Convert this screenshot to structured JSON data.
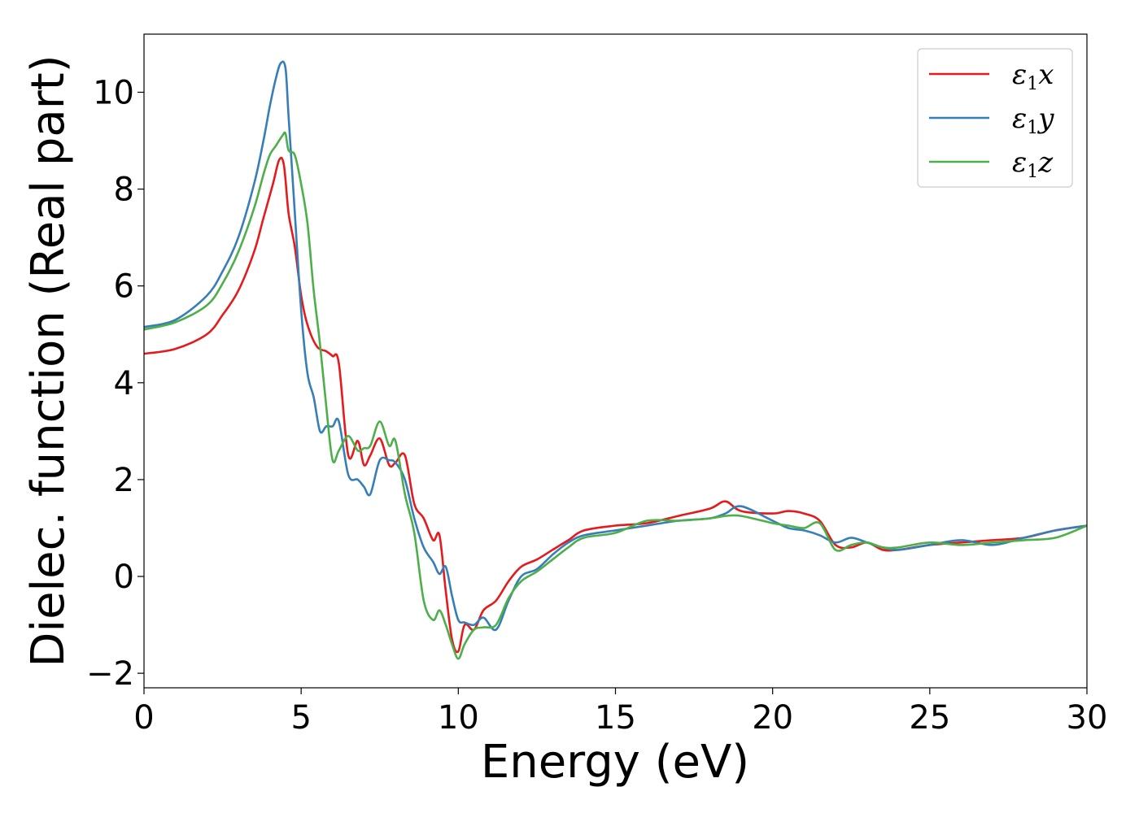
{
  "chart_data": {
    "type": "line",
    "title": "",
    "xlabel": "Energy (eV)",
    "ylabel": "Dielec. function (Real part)",
    "xlim": [
      0,
      30
    ],
    "ylim": [
      -2.3,
      11.2
    ],
    "xticks": [
      0,
      5,
      10,
      15,
      20,
      25,
      30
    ],
    "xtick_labels": [
      "0",
      "5",
      "10",
      "15",
      "20",
      "25",
      "30"
    ],
    "yticks": [
      -2,
      0,
      2,
      4,
      6,
      8,
      10
    ],
    "ytick_labels": [
      "−2",
      "0",
      "2",
      "4",
      "6",
      "8",
      "10"
    ],
    "grid": false,
    "legend_position": "top-right",
    "series": [
      {
        "name": "ε1x",
        "legend_base": "ε",
        "legend_sub": "1",
        "legend_suffix": "x",
        "color": "#e41a1c",
        "x": [
          0,
          1,
          2,
          2.5,
          3,
          3.5,
          3.8,
          4.1,
          4.3,
          4.45,
          4.6,
          4.8,
          5.0,
          5.2,
          5.5,
          5.8,
          6.0,
          6.2,
          6.5,
          6.8,
          7.0,
          7.2,
          7.5,
          7.8,
          8.0,
          8.3,
          8.6,
          8.9,
          9.2,
          9.4,
          9.6,
          9.8,
          10.0,
          10.2,
          10.5,
          10.8,
          11.2,
          11.6,
          12.0,
          12.5,
          13.0,
          13.5,
          14.0,
          15.0,
          16.0,
          17.0,
          18.0,
          18.5,
          19.0,
          20.0,
          20.5,
          21.0,
          21.5,
          22.0,
          22.5,
          23.0,
          23.5,
          24.0,
          25.0,
          26.0,
          27.0,
          28.0,
          29.0,
          30.0
        ],
        "values": [
          4.6,
          4.7,
          5.0,
          5.4,
          5.9,
          6.7,
          7.4,
          8.1,
          8.6,
          8.5,
          7.5,
          6.8,
          5.8,
          5.2,
          4.75,
          4.65,
          4.55,
          4.4,
          2.5,
          2.8,
          2.3,
          2.5,
          2.85,
          2.3,
          2.35,
          2.5,
          1.5,
          1.2,
          0.75,
          0.85,
          -0.3,
          -1.3,
          -1.55,
          -1.0,
          -1.1,
          -0.7,
          -0.5,
          -0.1,
          0.2,
          0.35,
          0.55,
          0.75,
          0.95,
          1.05,
          1.1,
          1.25,
          1.4,
          1.55,
          1.35,
          1.3,
          1.35,
          1.3,
          1.15,
          0.65,
          0.6,
          0.7,
          0.55,
          0.55,
          0.65,
          0.7,
          0.75,
          0.8,
          0.95,
          1.05
        ]
      },
      {
        "name": "ε1y",
        "legend_base": "ε",
        "legend_sub": "1",
        "legend_suffix": "y",
        "color": "#377eb8",
        "x": [
          0,
          1,
          2,
          2.5,
          3,
          3.5,
          3.8,
          4.0,
          4.2,
          4.35,
          4.5,
          4.6,
          4.8,
          5.0,
          5.2,
          5.4,
          5.6,
          5.8,
          6.0,
          6.2,
          6.5,
          6.8,
          7.0,
          7.2,
          7.5,
          7.8,
          8.0,
          8.3,
          8.6,
          8.9,
          9.2,
          9.4,
          9.6,
          9.8,
          10.0,
          10.2,
          10.5,
          10.8,
          11.2,
          11.6,
          12.0,
          12.5,
          13.0,
          13.5,
          14.0,
          15.0,
          16.0,
          17.0,
          18.0,
          18.5,
          19.0,
          20.0,
          20.5,
          21.0,
          21.5,
          22.0,
          22.5,
          23.0,
          23.5,
          24.0,
          25.0,
          26.0,
          27.0,
          28.0,
          29.0,
          30.0
        ],
        "values": [
          5.15,
          5.3,
          5.8,
          6.3,
          7.0,
          8.1,
          9.0,
          9.7,
          10.3,
          10.6,
          10.5,
          9.5,
          7.5,
          5.5,
          4.2,
          3.7,
          3.0,
          3.1,
          3.1,
          3.2,
          2.1,
          2.0,
          1.85,
          1.7,
          2.4,
          2.4,
          2.35,
          2.0,
          1.2,
          0.6,
          0.3,
          0.05,
          0.2,
          -0.4,
          -0.9,
          -0.95,
          -1.0,
          -0.85,
          -1.1,
          -0.5,
          0.0,
          0.15,
          0.45,
          0.7,
          0.85,
          0.95,
          1.05,
          1.15,
          1.2,
          1.3,
          1.45,
          1.15,
          1.0,
          0.95,
          0.85,
          0.7,
          0.8,
          0.7,
          0.6,
          0.55,
          0.65,
          0.75,
          0.65,
          0.8,
          0.95,
          1.05
        ]
      },
      {
        "name": "ε1z",
        "legend_base": "ε",
        "legend_sub": "1",
        "legend_suffix": "z",
        "color": "#4daf4a",
        "x": [
          0,
          1,
          2,
          2.5,
          3,
          3.5,
          3.8,
          4.0,
          4.2,
          4.4,
          4.5,
          4.6,
          4.8,
          5.0,
          5.2,
          5.4,
          5.6,
          5.8,
          6.0,
          6.2,
          6.5,
          6.8,
          7.0,
          7.2,
          7.5,
          7.8,
          8.0,
          8.3,
          8.6,
          8.9,
          9.2,
          9.4,
          9.6,
          9.8,
          10.0,
          10.2,
          10.5,
          10.8,
          11.2,
          11.6,
          12.0,
          12.5,
          13.0,
          13.5,
          14.0,
          15.0,
          16.0,
          17.0,
          18.0,
          18.5,
          19.0,
          20.0,
          20.5,
          21.0,
          21.5,
          22.0,
          22.5,
          23.0,
          23.5,
          24.0,
          25.0,
          26.0,
          27.0,
          28.0,
          29.0,
          30.0
        ],
        "values": [
          5.1,
          5.25,
          5.6,
          6.05,
          6.7,
          7.6,
          8.3,
          8.7,
          8.9,
          9.1,
          9.15,
          8.8,
          8.7,
          8.1,
          7.3,
          5.9,
          4.8,
          3.5,
          2.4,
          2.6,
          2.9,
          2.6,
          2.65,
          2.7,
          3.2,
          2.7,
          2.8,
          1.7,
          0.9,
          -0.5,
          -0.9,
          -0.7,
          -1.0,
          -1.4,
          -1.7,
          -1.4,
          -1.1,
          -1.05,
          -1.0,
          -0.45,
          -0.1,
          0.1,
          0.35,
          0.6,
          0.8,
          0.9,
          1.15,
          1.15,
          1.2,
          1.25,
          1.25,
          1.1,
          1.05,
          1.0,
          1.1,
          0.55,
          0.65,
          0.7,
          0.6,
          0.6,
          0.7,
          0.65,
          0.7,
          0.75,
          0.8,
          1.05
        ]
      }
    ]
  }
}
